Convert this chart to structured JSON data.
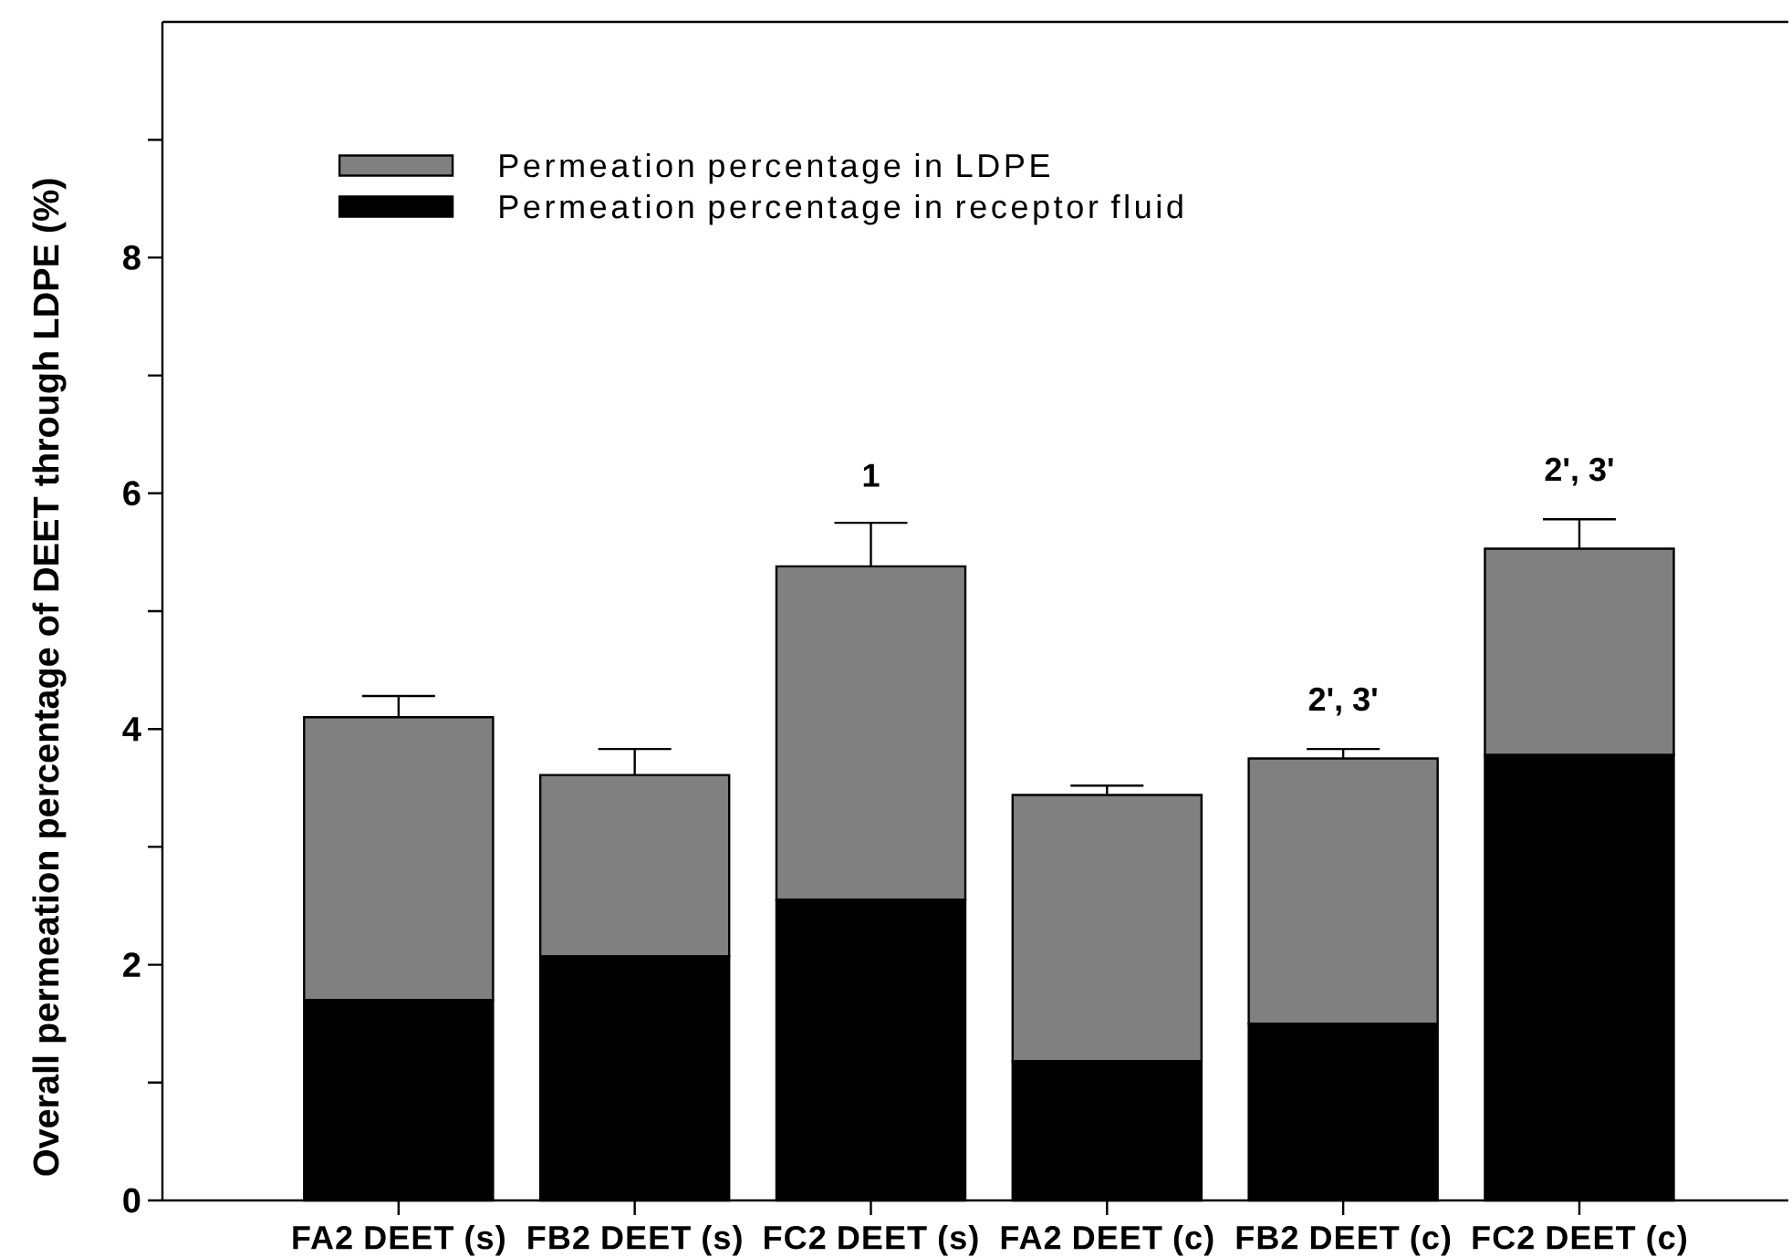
{
  "chart_data": {
    "type": "bar",
    "stacked": true,
    "categories": [
      "FA2 DEET (s)",
      "FB2 DEET (s)",
      "FC2 DEET (s)",
      "FA2 DEET (c)",
      "FB2 DEET (c)",
      "FC2 DEET (c)"
    ],
    "series": [
      {
        "name": "Permeation percentage in receptor fluid",
        "color": "#000000",
        "values": [
          1.7,
          2.07,
          2.55,
          1.18,
          1.5,
          3.78
        ]
      },
      {
        "name": "Permeation percentage in LDPE",
        "color": "#808080",
        "values": [
          2.4,
          1.54,
          2.83,
          2.26,
          2.25,
          1.75
        ],
        "errors": [
          [
            4.1,
            4.28
          ],
          [
            3.61,
            3.83
          ],
          [
            5.38,
            5.75
          ],
          [
            3.44,
            3.52
          ],
          [
            3.75,
            3.83
          ],
          [
            5.53,
            5.78
          ]
        ]
      }
    ],
    "ylabel": "Overall permeation percentage of DEET through LDPE (%)",
    "ylim": [
      0,
      10
    ],
    "yticks": [
      0,
      {
        "value": 1,
        "label": null
      },
      2,
      {
        "value": 3,
        "label": null
      },
      4,
      {
        "value": 5,
        "label": null
      },
      6,
      {
        "value": 7,
        "label": null
      },
      8,
      {
        "value": 9,
        "label": null
      }
    ],
    "legend": "top left",
    "annotations": [
      {
        "text": "1",
        "x": "FC2 DEET (s)",
        "y": 5.75
      },
      {
        "text": "2', 3'",
        "x": "FB2 DEET (c)",
        "y": 3.83
      },
      {
        "text": "2', 3'",
        "x": "FC2 DEET (c)",
        "y": 5.78
      }
    ]
  }
}
